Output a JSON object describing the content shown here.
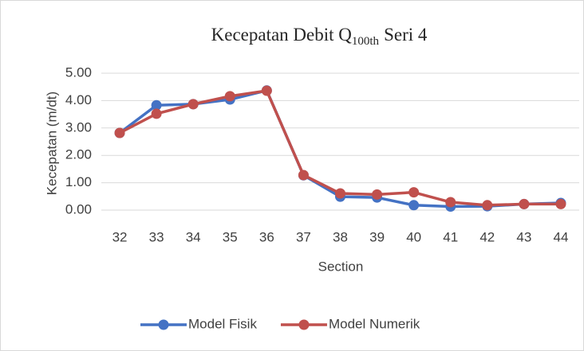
{
  "chart_data": {
    "type": "line",
    "title_parts": [
      "Kecepatan Debit Q",
      "100th",
      "Seri 4"
    ],
    "xlabel": "Section",
    "ylabel": "Kecepatan (m/dt)",
    "categories": [
      "32",
      "33",
      "34",
      "35",
      "36",
      "37",
      "38",
      "39",
      "40",
      "41",
      "42",
      "43",
      "44"
    ],
    "series": [
      {
        "name": "Model Fisik",
        "color": "#4472c4",
        "values": [
          2.82,
          3.83,
          3.87,
          4.04,
          4.37,
          1.27,
          0.49,
          0.46,
          0.18,
          0.13,
          0.14,
          0.22,
          0.26
        ]
      },
      {
        "name": "Model Numerik",
        "color": "#c0504d",
        "values": [
          2.82,
          3.52,
          3.87,
          4.16,
          4.36,
          1.28,
          0.61,
          0.57,
          0.65,
          0.29,
          0.18,
          0.22,
          0.22
        ]
      }
    ],
    "ylim": [
      0,
      5
    ],
    "yticks": [
      {
        "value": 0,
        "label": "0.00"
      },
      {
        "value": 1,
        "label": "1.00"
      },
      {
        "value": 2,
        "label": "2.00"
      },
      {
        "value": 3,
        "label": "3.00"
      },
      {
        "value": 4,
        "label": "4.00"
      },
      {
        "value": 5,
        "label": "5.00"
      }
    ],
    "grid": true,
    "legend": "bottom"
  }
}
